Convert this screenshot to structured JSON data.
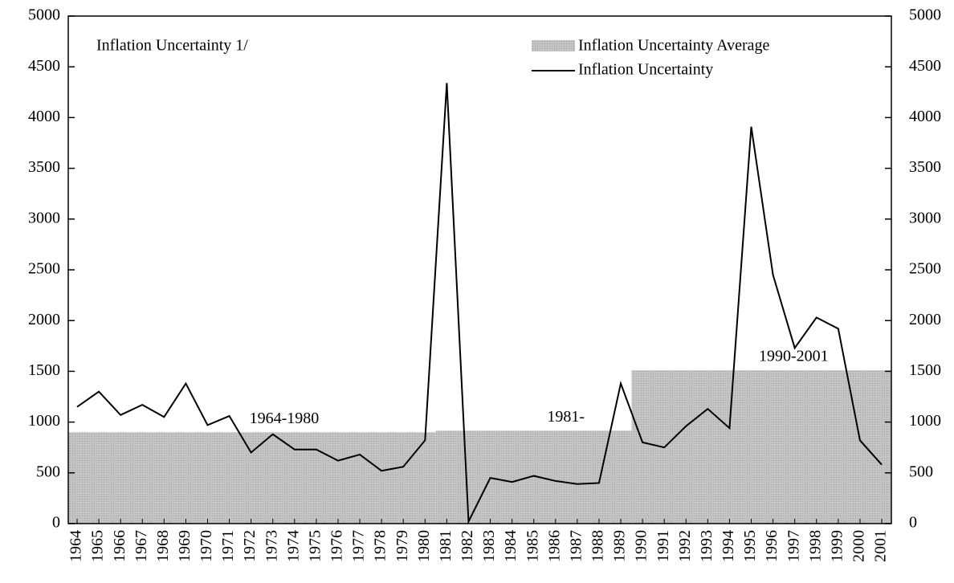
{
  "chart_data": {
    "type": "line",
    "annotation": "Inflation Uncertainty 1/",
    "categories": [
      "1964",
      "1965",
      "1966",
      "1967",
      "1968",
      "1969",
      "1970",
      "1971",
      "1972",
      "1973",
      "1974",
      "1975",
      "1976",
      "1977",
      "1978",
      "1979",
      "1980",
      "1981",
      "1982",
      "1983",
      "1984",
      "1985",
      "1986",
      "1987",
      "1988",
      "1989",
      "1990",
      "1991",
      "1992",
      "1993",
      "1994",
      "1995",
      "1996",
      "1997",
      "1998",
      "1999",
      "2000",
      "2001"
    ],
    "series": [
      {
        "name": "Inflation Uncertainty Average",
        "color": "#c4c4c4",
        "periods": [
          {
            "label": "1964-1980",
            "start": "1964",
            "end": "1980",
            "value": 900
          },
          {
            "label": "1981-",
            "start": "1981",
            "end": "1989",
            "value": 915
          },
          {
            "label": "1990-2001",
            "start": "1990",
            "end": "2001",
            "value": 1510
          }
        ]
      },
      {
        "name": "Inflation Uncertainty",
        "color": "#000000",
        "values": [
          1150,
          1300,
          1070,
          1170,
          1050,
          1380,
          970,
          1060,
          700,
          880,
          730,
          730,
          620,
          680,
          520,
          560,
          820,
          4340,
          20,
          450,
          410,
          470,
          420,
          390,
          400,
          1380,
          800,
          750,
          960,
          1130,
          940,
          3910,
          2450,
          1730,
          2030,
          1920,
          820,
          580
        ]
      }
    ],
    "ylim": [
      0,
      5000
    ],
    "yticks": [
      0,
      500,
      1000,
      1500,
      2000,
      2500,
      3000,
      3500,
      4000,
      4500,
      5000
    ],
    "y2lim": [
      0,
      5000
    ],
    "y2ticks": [
      0,
      500,
      1000,
      1500,
      2000,
      2500,
      3000,
      3500,
      4000,
      4500,
      5000
    ],
    "legend": "top-right"
  }
}
